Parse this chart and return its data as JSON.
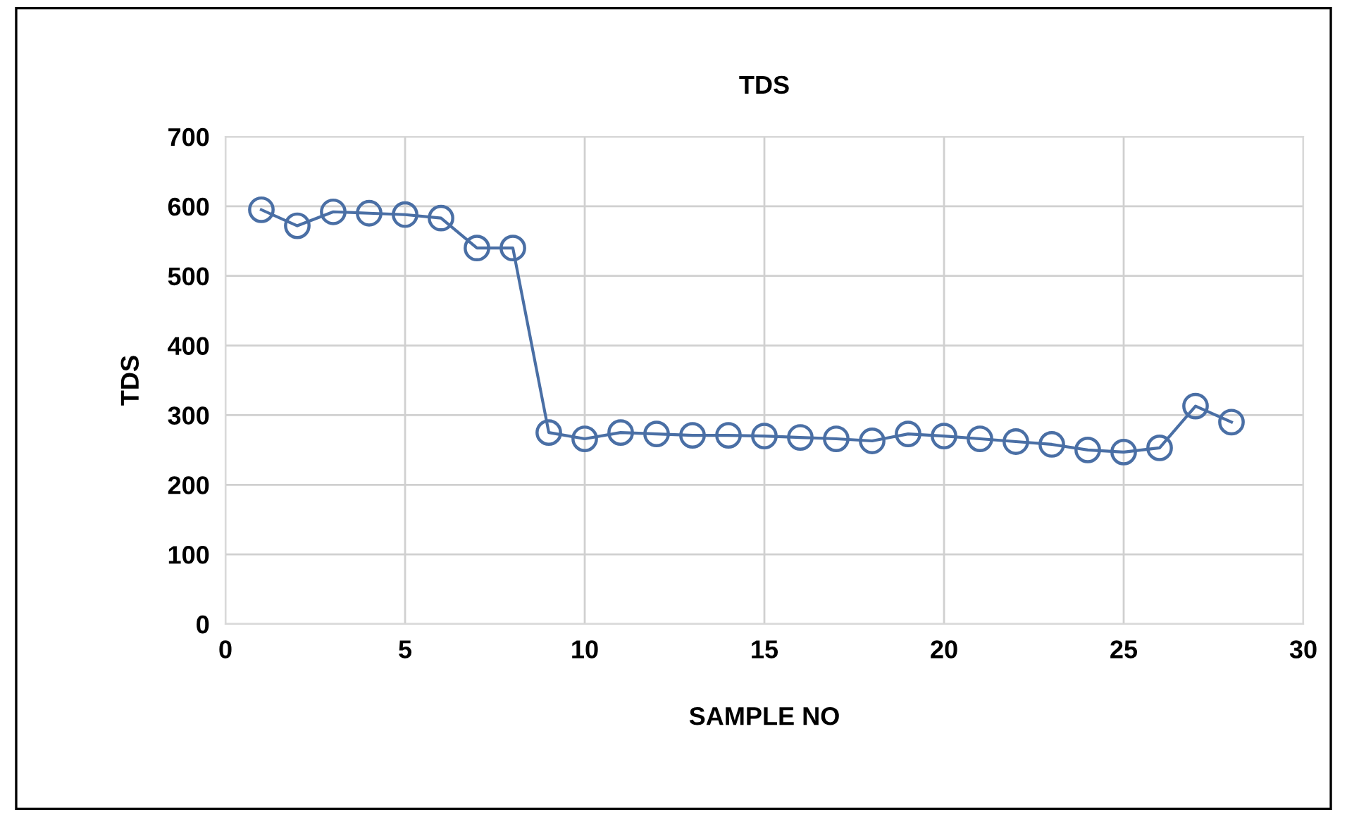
{
  "chart_data": {
    "type": "line",
    "title": "TDS",
    "xlabel": "SAMPLE NO",
    "ylabel": "TDS",
    "x": [
      1,
      2,
      3,
      4,
      5,
      6,
      7,
      8,
      9,
      10,
      11,
      12,
      13,
      14,
      15,
      16,
      17,
      18,
      19,
      20,
      21,
      22,
      23,
      24,
      25,
      26,
      27,
      28
    ],
    "series": [
      {
        "color": "#4a6fa5",
        "values": [
          595,
          572,
          592,
          590,
          588,
          583,
          540,
          540,
          275,
          266,
          275,
          273,
          271,
          271,
          270,
          268,
          266,
          263,
          273,
          270,
          266,
          262,
          258,
          250,
          247,
          253,
          313,
          290
        ]
      }
    ],
    "xlim": [
      0,
      30
    ],
    "xticks": [
      0,
      5,
      10,
      15,
      20,
      25,
      30
    ],
    "ylim": [
      0,
      700
    ],
    "yticks": [
      0,
      100,
      200,
      300,
      400,
      500,
      600,
      700
    ],
    "grid": true,
    "marker": "circle",
    "line_style": "solid"
  }
}
